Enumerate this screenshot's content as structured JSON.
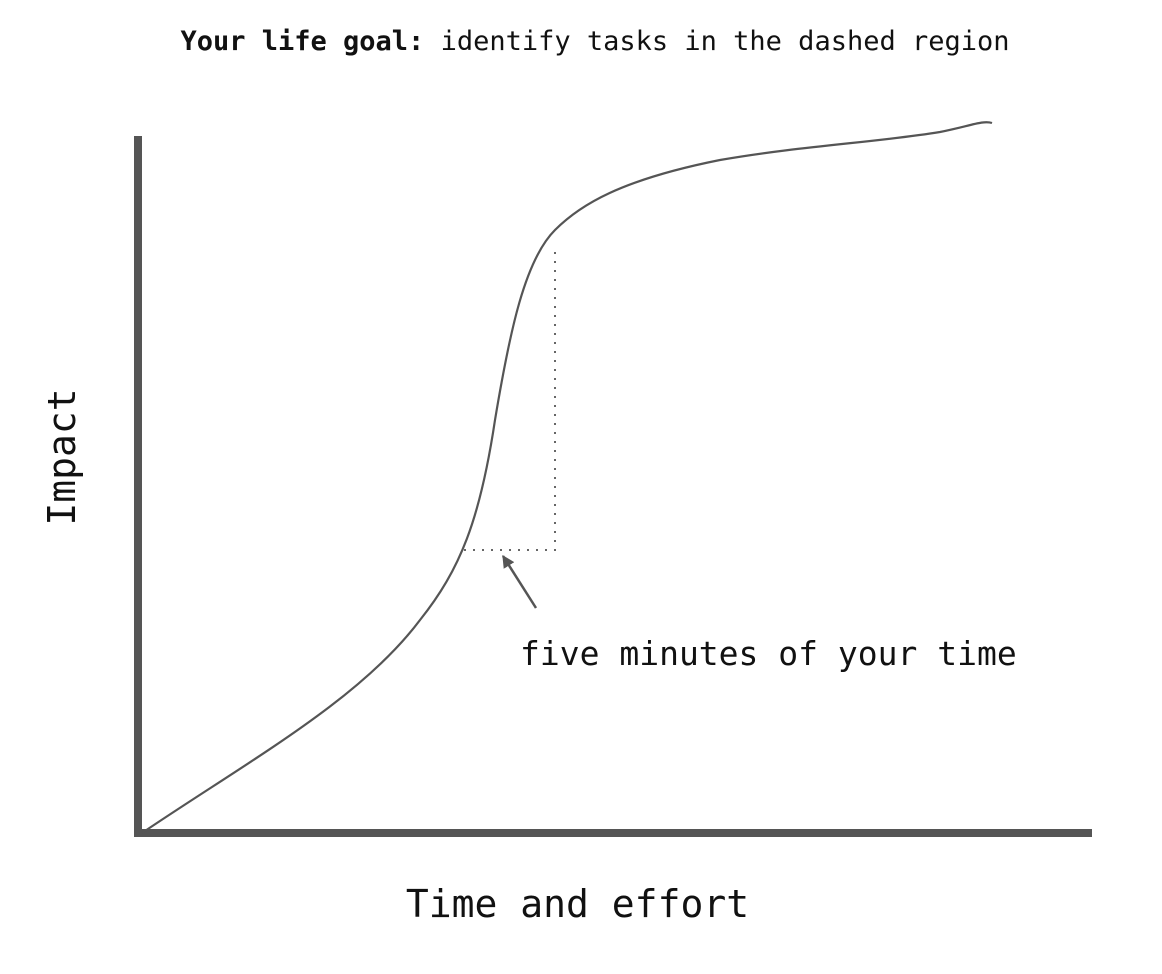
{
  "title": {
    "bold": "Your life goal:",
    "rest": " identify tasks in the dashed region"
  },
  "annotation": "five minutes of your time",
  "xlabel": "Time and effort",
  "ylabel": "Impact",
  "colors": {
    "axis": "#555555",
    "curve": "#555555",
    "dotted": "#666666",
    "text": "#111111"
  }
}
